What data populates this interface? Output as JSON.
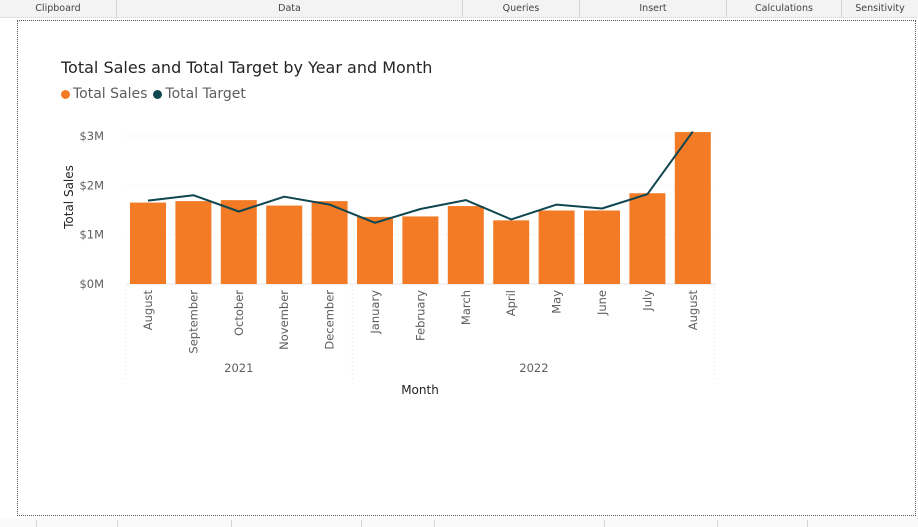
{
  "ribbon": {
    "groups": [
      "Clipboard",
      "Data",
      "Queries",
      "Insert",
      "Calculations",
      "Sensitivity"
    ]
  },
  "colors": {
    "sales": "#f37b26",
    "target": "#0f4650",
    "grid": "#e6e6e6",
    "axis_text": "#605e5c"
  },
  "chart_data": {
    "type": "bar",
    "title": "Total Sales and Total Target by Year and Month",
    "legend": [
      "Total Sales",
      "Total Target"
    ],
    "legend_position": "top-left",
    "xlabel": "Month",
    "ylabel": "Total Sales",
    "ylim": [
      0,
      3
    ],
    "y_ticks": [
      "$0M",
      "$1M",
      "$2M",
      "$3M"
    ],
    "grid": true,
    "years": [
      {
        "label": "2021",
        "months": 5
      },
      {
        "label": "2022",
        "months": 8
      }
    ],
    "categories": [
      "August",
      "September",
      "October",
      "November",
      "December",
      "January",
      "February",
      "March",
      "April",
      "May",
      "June",
      "July",
      "August"
    ],
    "series": [
      {
        "name": "Total Sales",
        "type": "bar",
        "values": [
          1.65,
          1.68,
          1.7,
          1.59,
          1.68,
          1.36,
          1.37,
          1.58,
          1.29,
          1.49,
          1.49,
          1.84,
          3.08
        ]
      },
      {
        "name": "Total Target",
        "type": "line",
        "values": [
          1.69,
          1.8,
          1.47,
          1.77,
          1.61,
          1.24,
          1.52,
          1.7,
          1.31,
          1.61,
          1.53,
          1.82,
          3.09
        ]
      }
    ]
  }
}
